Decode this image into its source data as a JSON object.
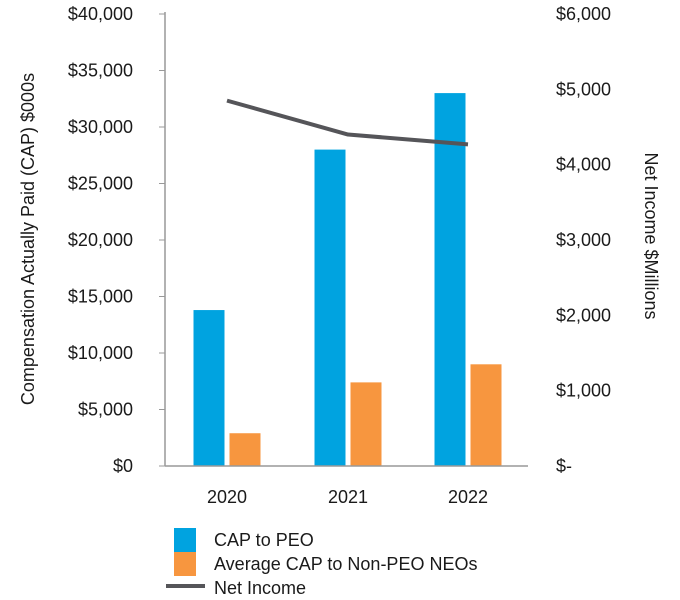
{
  "chart_data": {
    "type": "bar",
    "categories": [
      "2020",
      "2021",
      "2022"
    ],
    "series": [
      {
        "name": "CAP to PEO",
        "axis": "left",
        "kind": "bar",
        "color": "#00a3e0",
        "values": [
          13800,
          28000,
          33000
        ]
      },
      {
        "name": "Average CAP to Non-PEO NEOs",
        "axis": "left",
        "kind": "bar",
        "color": "#f7963f",
        "values": [
          2900,
          7400,
          9000
        ]
      },
      {
        "name": "Net Income",
        "axis": "right",
        "kind": "line",
        "color": "#555559",
        "values": [
          4850,
          4400,
          4270
        ]
      }
    ],
    "ylabel": "Compensation Actually Paid (CAP) $000s",
    "y2label": "Net Income $Millions",
    "ylim": [
      0,
      40000
    ],
    "y2lim": [
      0,
      6000
    ],
    "yticks": [
      {
        "value": 0,
        "label": "$0"
      },
      {
        "value": 5000,
        "label": "$5,000"
      },
      {
        "value": 10000,
        "label": "$10,000"
      },
      {
        "value": 15000,
        "label": "$15,000"
      },
      {
        "value": 20000,
        "label": "$20,000"
      },
      {
        "value": 25000,
        "label": "$25,000"
      },
      {
        "value": 30000,
        "label": "$30,000"
      },
      {
        "value": 35000,
        "label": "$35,000"
      },
      {
        "value": 40000,
        "label": "$40,000"
      }
    ],
    "y2ticks": [
      {
        "value": 0,
        "label": "$-"
      },
      {
        "value": 1000,
        "label": "$1,000"
      },
      {
        "value": 2000,
        "label": "$2,000"
      },
      {
        "value": 3000,
        "label": "$3,000"
      },
      {
        "value": 4000,
        "label": "$4,000"
      },
      {
        "value": 5000,
        "label": "$5,000"
      },
      {
        "value": 6000,
        "label": "$6,000"
      }
    ],
    "grid": false,
    "legend_position": "bottom-left"
  }
}
